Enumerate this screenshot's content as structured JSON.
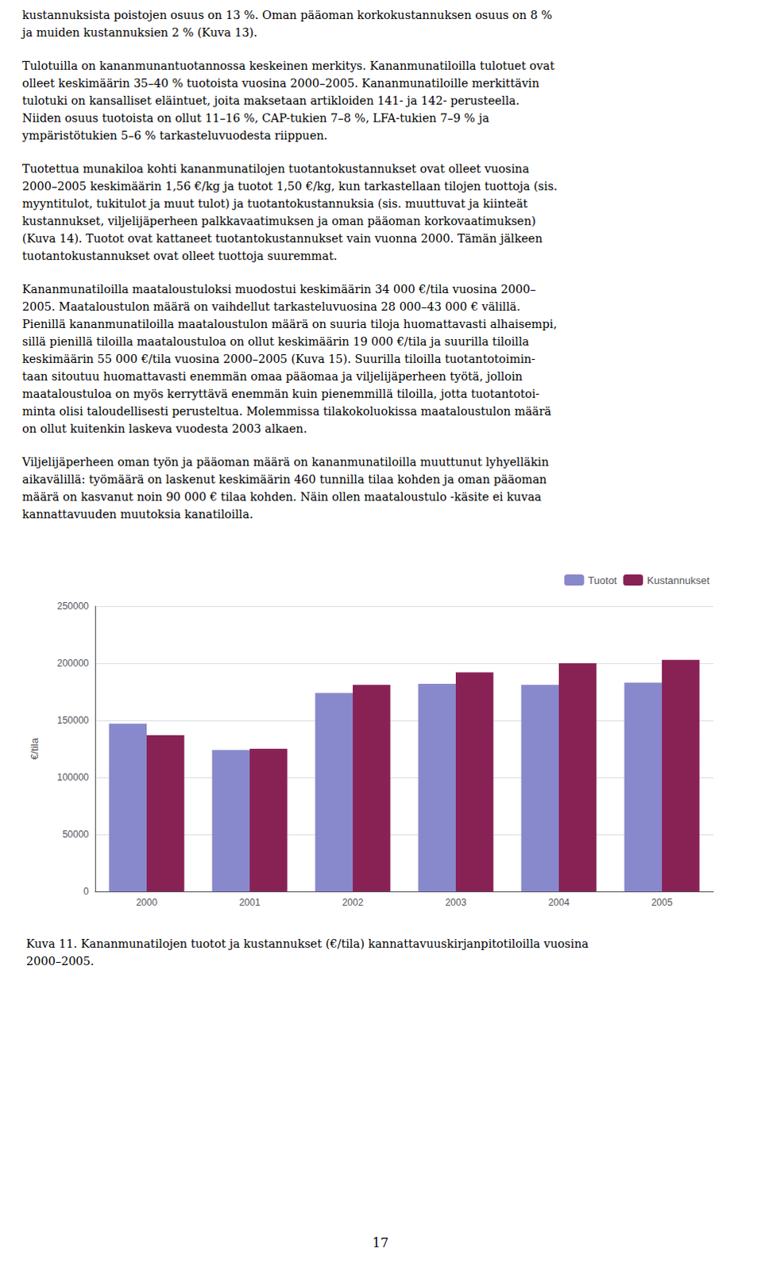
{
  "chart_data": {
    "type": "bar",
    "title": "Kuva 11. Kananmunatilojen tuotot ja kustannukset (€/tila) kannattavuuskirjanpitotiloilla vuosina\n2000–2005.",
    "ylabel": "€/tila",
    "categories": [
      "2000",
      "2001",
      "2002",
      "2003",
      "2004",
      "2005"
    ],
    "series": [
      {
        "name": "Tuotot",
        "color": "#8888cc",
        "values": [
          147000,
          124000,
          174000,
          182000,
          181000,
          183000
        ]
      },
      {
        "name": "Kustannukset",
        "color": "#882255",
        "values": [
          137000,
          125000,
          181000,
          192000,
          200000,
          203000
        ]
      }
    ],
    "ylim": [
      0,
      250000
    ],
    "yticks": [
      0,
      50000,
      100000,
      150000,
      200000,
      250000
    ],
    "grid": true,
    "legend": "upper right",
    "annotations": [
      "kustannuksista poistojen osuus on 13 %. Oman pääoman korkokustannuksen osuus on 8 %\nja muiden kustannuksien 2 % (Kuva 13).",
      "Tulotuilla on kananmunantuotannossa keskeinen merkitys. Kananmunatiloilla tulotuet ovat\nolleet keskimäärin 35–40 % tuotoista vuosina 2000–2005. Kananmunatiloille merkittävin\ntulotuki on kansalliset eläintuet, joita maksetaan artikloiden 141- ja 142- perusteella.\nNiiden osuus tuotoista on ollut 11–16 %, CAP-tukien 7–8 %, LFA-tukien 7–9 % ja\nympäristötukien 5–6 % tarkasteluvuodesta riippuen.",
      "Tuotettua munakiloa kohti kananmunatilojen tuotantokustannukset ovat olleet vuosina\n2000–2005 keskimäärin 1,56 €/kg ja tuotot 1,50 €/kg, kun tarkastellaan tilojen tuottoja (sis.\nmyyntitulot, tukitulot ja muut tulot) ja tuotantokustannuksia (sis. muuttuvat ja kiinteät\nkustannukset, viljelijäperheen palkkavaatimuksen ja oman pääoman korkovaatimuksen)\n(Kuva 14). Tuotot ovat kattaneet tuotantokustannukset vain vuonna 2000. Tämän jälkeen\ntuotantokustannukset ovat olleet tuottoja suuremmat.",
      "Kananmunatiloilla maataloustuloksi muodostui keskimäärin 34 000 €/tila vuosina 2000–\n2005. Maataloustulon määrä on vaihdellut tarkasteluvuosina 28 000–43 000 € välillä.\nPienillä kananmunatiloilla maataloustulon määrä on suuria tiloja huomattavasti alhaisempi,\nsillä pienillä tiloilla maataloustuloa on ollut keskimäärin 19 000 €/tila ja suurilla tiloilla\nkeskimäärin 55 000 €/tila vuosina 2000–2005 (Kuva 15). Suurilla tiloilla tuotantotoimin-\ntaan sitoutuu huomattavasti enemmän omaa pääomaa ja viljelijäperheen työtä, jolloin\nmaataloustuloa on myös kerryttävä enemmän kuin pienemmillä tiloilla, jotta tuotantotoi-\nminta olisi taloudellisesti perusteltua. Molemmissa tilakokoluokissa maataloustulon määrä\non ollut kuitenkin laskeva vuodesta 2003 alkaen.",
      "Viljelijäperheen oman työn ja pääoman määrä on kananmunatiloilla muuttunut lyhyelläkin\naikavälillä: työmäärä on laskenut keskimäärin 460 tunnilla tilaa kohden ja oman pääoman\nmäärä on kasvanut noin 90 000 € tilaa kohden. Näin ollen maataloustulo -käsite ei kuvaa\nkannattavuuden muutoksia kanatiloilla.",
      "17"
    ]
  }
}
